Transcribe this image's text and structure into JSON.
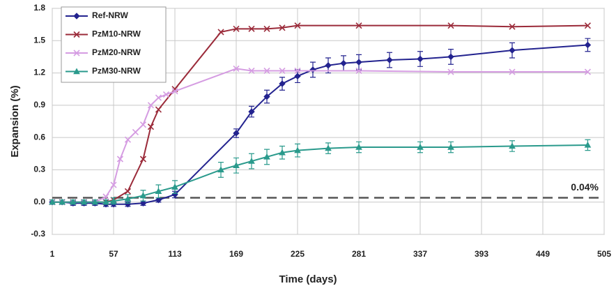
{
  "chart_data": {
    "type": "line",
    "xlabel": "Time (days)",
    "ylabel": "Expansion (%)",
    "xlim": [
      1,
      505
    ],
    "ylim": [
      -0.3,
      1.8
    ],
    "xticks": [
      1,
      57,
      113,
      169,
      225,
      281,
      337,
      393,
      449,
      505
    ],
    "yticks": [
      -0.3,
      {
        "value": 0,
        "label": "0.0"
      },
      0.3,
      0.6,
      0.9,
      1.2,
      1.5,
      1.8
    ],
    "grid": true,
    "legend": "upper-left",
    "reference_line": {
      "value": 0.04,
      "label": "0.04%"
    },
    "series": [
      {
        "name": "Ref-NRW",
        "color": "#23238f",
        "marker": "diamond",
        "x": [
          1,
          10,
          20,
          30,
          40,
          50,
          57,
          70,
          84,
          98,
          113,
          169,
          183,
          197,
          211,
          225,
          239,
          253,
          267,
          281,
          309,
          337,
          365,
          421,
          490
        ],
        "values": [
          0,
          0,
          -0.01,
          -0.01,
          -0.01,
          -0.02,
          -0.02,
          -0.02,
          -0.01,
          0.02,
          0.07,
          0.64,
          0.84,
          0.98,
          1.1,
          1.17,
          1.23,
          1.27,
          1.29,
          1.3,
          1.32,
          1.33,
          1.35,
          1.41,
          1.46
        ],
        "errors": [
          0.02,
          0.02,
          0.02,
          0.02,
          0.02,
          0.02,
          0.02,
          0.02,
          0.02,
          0.02,
          0.03,
          0.04,
          0.05,
          0.06,
          0.06,
          0.06,
          0.07,
          0.07,
          0.07,
          0.07,
          0.07,
          0.07,
          0.07,
          0.07,
          0.06
        ]
      },
      {
        "name": "PzM10-NRW",
        "color": "#9b2b3a",
        "marker": "x",
        "x": [
          1,
          10,
          20,
          30,
          40,
          50,
          57,
          70,
          84,
          91,
          98,
          113,
          155,
          169,
          183,
          197,
          211,
          225,
          281,
          365,
          421,
          490
        ],
        "values": [
          0,
          0,
          0,
          0,
          0,
          0,
          0.02,
          0.1,
          0.4,
          0.7,
          0.86,
          1.05,
          1.58,
          1.61,
          1.61,
          1.61,
          1.62,
          1.64,
          1.64,
          1.64,
          1.63,
          1.64
        ]
      },
      {
        "name": "PzM20-NRW",
        "color": "#d59ce2",
        "marker": "x",
        "x": [
          1,
          10,
          20,
          30,
          40,
          50,
          57,
          63,
          70,
          77,
          84,
          91,
          98,
          105,
          113,
          169,
          183,
          197,
          211,
          225,
          281,
          365,
          421,
          490
        ],
        "values": [
          0,
          0,
          0,
          0,
          0,
          0.05,
          0.16,
          0.4,
          0.58,
          0.65,
          0.72,
          0.9,
          0.97,
          1.0,
          1.03,
          1.24,
          1.22,
          1.22,
          1.22,
          1.22,
          1.22,
          1.21,
          1.21,
          1.21
        ]
      },
      {
        "name": "PzM30-NRW",
        "color": "#2a9a8c",
        "marker": "triangle",
        "x": [
          1,
          10,
          20,
          30,
          40,
          50,
          57,
          70,
          84,
          98,
          113,
          155,
          169,
          183,
          197,
          211,
          225,
          253,
          281,
          337,
          365,
          421,
          490
        ],
        "values": [
          0,
          0,
          0,
          0,
          0,
          0,
          0.01,
          0.03,
          0.06,
          0.1,
          0.14,
          0.3,
          0.34,
          0.38,
          0.42,
          0.46,
          0.48,
          0.5,
          0.51,
          0.51,
          0.51,
          0.52,
          0.53
        ],
        "errors": [
          0.02,
          0.02,
          0.02,
          0.02,
          0.02,
          0.02,
          0.03,
          0.04,
          0.05,
          0.06,
          0.06,
          0.07,
          0.07,
          0.07,
          0.07,
          0.06,
          0.06,
          0.05,
          0.05,
          0.05,
          0.05,
          0.05,
          0.05
        ]
      }
    ]
  }
}
